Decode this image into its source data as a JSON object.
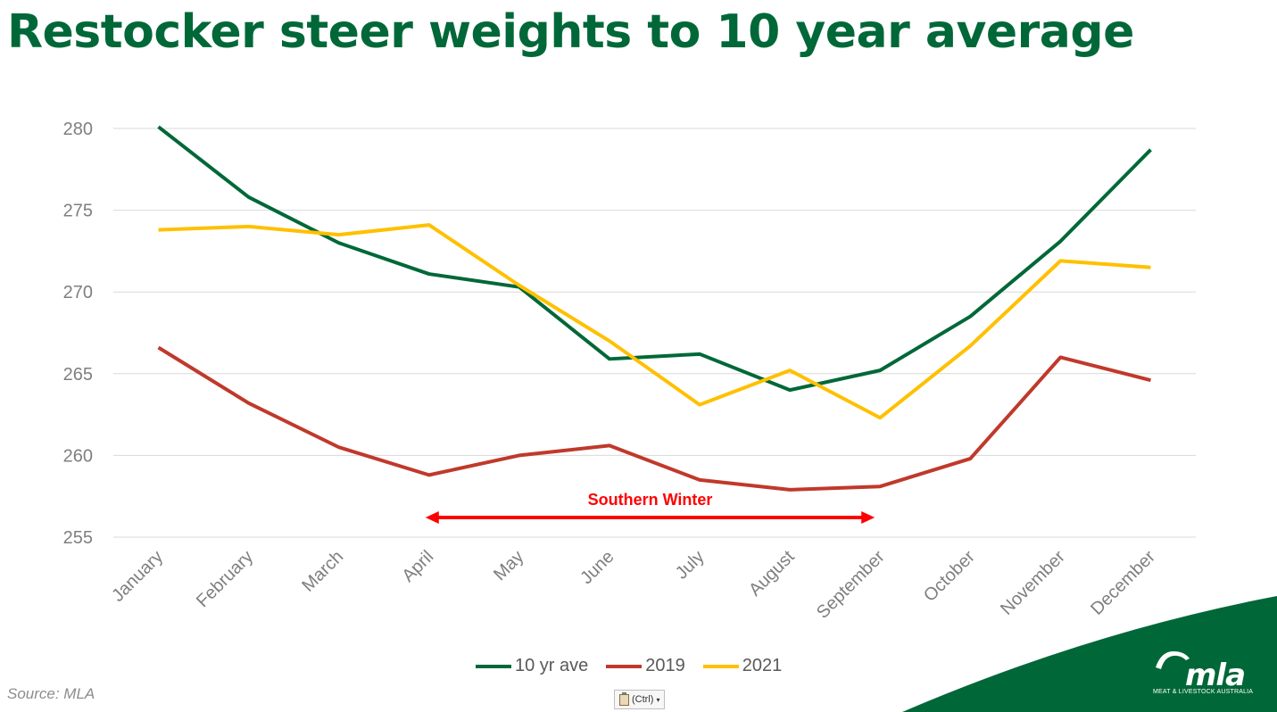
{
  "title": "Restocker steer weights to 10 year average",
  "source": "Source: MLA",
  "paste_button": {
    "label": "(Ctrl)",
    "arrow": "▾",
    "icon": "clipboard-icon"
  },
  "logo": {
    "name": "mla",
    "subtitle": "MEAT & LIVESTOCK AUSTRALIA"
  },
  "colors": {
    "green": "#006838",
    "red": "#c0392b",
    "yellow": "#ffc000",
    "title": "#006838",
    "annotation": "#ff0000"
  },
  "chart_data": {
    "type": "line",
    "title": "Restocker steer weights to 10 year average",
    "xlabel": "",
    "ylabel": "",
    "ylim": [
      255,
      280
    ],
    "yticks": [
      255,
      260,
      265,
      270,
      275,
      280
    ],
    "grid": true,
    "legend_position": "bottom",
    "categories": [
      "January",
      "February",
      "March",
      "April",
      "May",
      "June",
      "July",
      "August",
      "September",
      "October",
      "November",
      "December"
    ],
    "series": [
      {
        "name": "10 yr ave",
        "color": "#006838",
        "values": [
          280.1,
          275.8,
          273.0,
          271.1,
          270.3,
          265.9,
          266.2,
          264.0,
          265.2,
          268.5,
          273.1,
          278.7
        ]
      },
      {
        "name": "2019",
        "color": "#c0392b",
        "values": [
          266.6,
          263.2,
          260.5,
          258.8,
          260.0,
          260.6,
          258.5,
          257.9,
          258.1,
          259.8,
          266.0,
          264.6
        ]
      },
      {
        "name": "2021",
        "color": "#ffc000",
        "values": [
          273.8,
          274.0,
          273.5,
          274.1,
          270.4,
          267.0,
          263.1,
          265.2,
          262.3,
          266.7,
          271.9,
          271.5
        ]
      }
    ],
    "annotation": {
      "label": "Southern Winter",
      "from": "April",
      "to": "September"
    }
  }
}
